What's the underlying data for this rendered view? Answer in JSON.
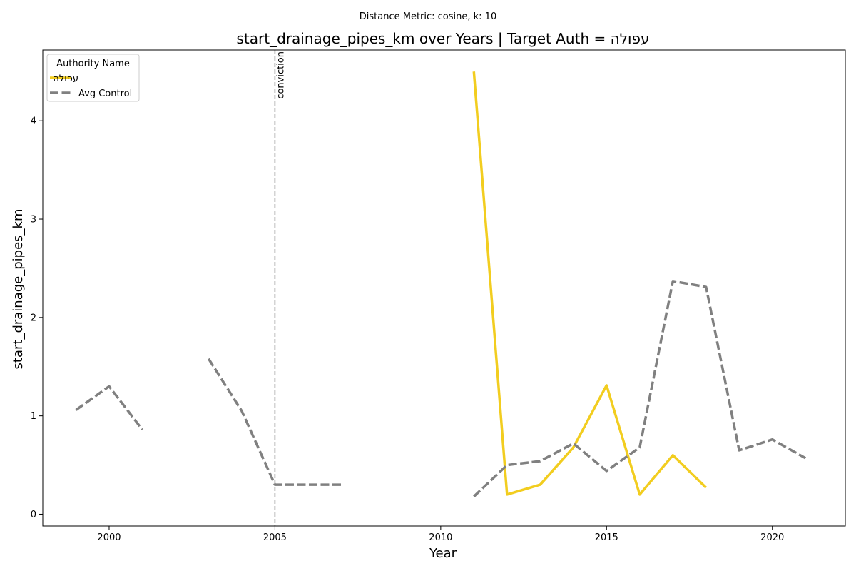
{
  "chart_data": {
    "type": "line",
    "suptitle": "Distance Metric: cosine, k: 10",
    "title": "start_drainage_pipes_km over Years | Target Auth = עפולה",
    "xlabel": "Year",
    "ylabel": "start_drainage_pipes_km",
    "xlim": [
      1998,
      2022.2
    ],
    "ylim": [
      -0.12,
      4.72
    ],
    "xticks": [
      2000,
      2005,
      2010,
      2015,
      2020
    ],
    "yticks": [
      0,
      1,
      2,
      3,
      4
    ],
    "grid": false,
    "legend": {
      "title": "Authority Name",
      "placement": "top-left"
    },
    "series": [
      {
        "name": "עפולה",
        "color": "#f2cd1f",
        "style": "solid",
        "points": [
          [
            2011,
            4.5
          ],
          [
            2012,
            0.2
          ],
          [
            2013,
            0.3
          ],
          [
            2014,
            0.68
          ],
          [
            2015,
            1.31
          ],
          [
            2016,
            0.2
          ],
          [
            2017,
            0.6
          ],
          [
            2018,
            0.27
          ]
        ]
      },
      {
        "name": "Avg Control",
        "color": "#808080",
        "style": "dashed",
        "points": [
          [
            1999,
            1.06
          ],
          [
            2000,
            1.3
          ],
          [
            2001,
            0.86
          ],
          [
            2002,
            null
          ],
          [
            2003,
            1.58
          ],
          [
            2004,
            1.05
          ],
          [
            2005,
            0.3
          ],
          [
            2006,
            0.3
          ],
          [
            2007,
            0.3
          ],
          [
            2008,
            null
          ],
          [
            2009,
            null
          ],
          [
            2010,
            null
          ],
          [
            2011,
            0.18
          ],
          [
            2012,
            0.5
          ],
          [
            2013,
            0.54
          ],
          [
            2014,
            0.72
          ],
          [
            2015,
            0.44
          ],
          [
            2016,
            0.68
          ],
          [
            2017,
            2.37
          ],
          [
            2018,
            2.31
          ],
          [
            2019,
            0.65
          ],
          [
            2020,
            0.76
          ],
          [
            2021,
            0.57
          ]
        ]
      }
    ],
    "annotations": [
      {
        "type": "vline",
        "x": 2005,
        "label": "conviction",
        "color": "#808080"
      }
    ]
  }
}
